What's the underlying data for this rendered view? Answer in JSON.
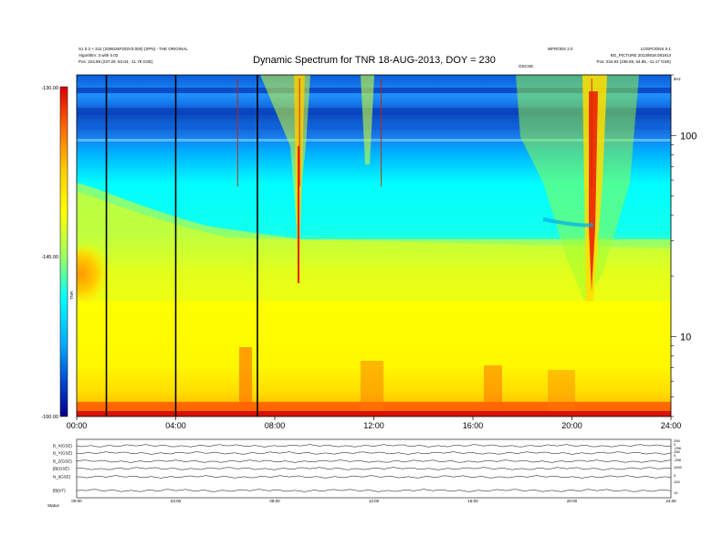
{
  "header": {
    "title": "Dynamic Spectrum for TNR 18-AUG-2013, DOY = 230",
    "left_line_1": "S1 0.3 + S11 (20081NP202V3.000) (SPN) - THE ORIGINAL",
    "left_line_2": "Algorithm: 3 with 0.02",
    "left_line_3": "Pos:    223.89 (237.29, 63.04, -11.79 GSE)",
    "mid_label": "OSCOE",
    "right_line_1": "WFRODS 2.0",
    "right_line_2": "LOGPOONS 0.1",
    "right_line_3": "BG_PICTURE 20130818.081813",
    "right_line_4": "Pos:    234.93 (238.69, 64.85, -11.17 GSE)"
  },
  "colorbar": {
    "label": "TNR",
    "tick_labels": [
      "-130.00",
      "-145.00",
      "-160.00"
    ],
    "colors": [
      "#dd0000",
      "#ff6600",
      "#ffcc00",
      "#ffff00",
      "#99ff66",
      "#00ffff",
      "#00aaff",
      "#0044cc",
      "#000088"
    ]
  },
  "chart_data": {
    "type": "heatmap",
    "title": "Dynamic Spectrum for TNR 18-AUG-2013, DOY = 230",
    "x_tick_labels": [
      "00:00",
      "04:00",
      "08:00",
      "12:00",
      "16:00",
      "20:00",
      "24:00"
    ],
    "xlim": [
      0,
      24
    ],
    "y_scale": "log",
    "ylim": [
      4,
      200
    ],
    "y_tick_labels": [
      "100",
      "10"
    ],
    "y_axis_unit": "kHz",
    "color_scale": {
      "min": -160,
      "max": -130,
      "ticks": [
        -130,
        -145,
        -160
      ]
    },
    "dark_vertical_lines_hours": [
      1.2,
      4.0,
      7.3
    ],
    "red_vertical_streaks_hours": [
      6.5,
      9.0,
      12.3,
      20.8
    ]
  },
  "bottom_panel": {
    "row_labels": [
      "B_X(GSE)",
      "B_Y(GSE)",
      "B_Z(GSE)",
      "|B|(GSE)",
      "N_i(GSE)",
      "|B|(nT)"
    ],
    "right_labels": [
      "256",
      "0",
      "-256",
      "256",
      "0",
      "-256",
      "1000",
      "0",
      "100",
      "10"
    ],
    "x_tick_labels": [
      "00:00",
      "04:00",
      "08:00",
      "12:00",
      "16:00",
      "20:00",
      "24:00"
    ],
    "footer_label": "Status"
  }
}
